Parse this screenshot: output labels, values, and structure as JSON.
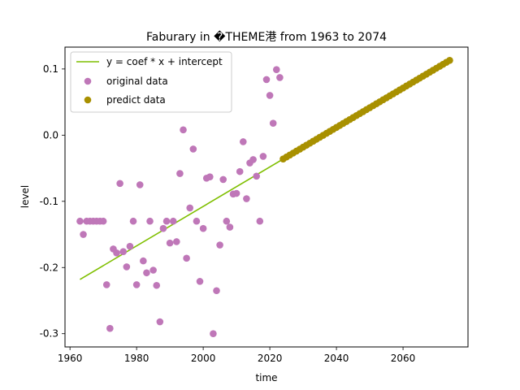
{
  "chart_data": {
    "type": "scatter",
    "title": "Faburary in �THEME港 from 1963 to 2074",
    "xlabel": "time",
    "ylabel": "level",
    "xlim": [
      1958.5,
      2079.5
    ],
    "ylim": [
      -0.32,
      0.133
    ],
    "xticks": [
      1960,
      1980,
      2000,
      2020,
      2040,
      2060
    ],
    "xtick_labels": [
      "1960",
      "1980",
      "2000",
      "2020",
      "2040",
      "2060"
    ],
    "yticks": [
      -0.3,
      -0.2,
      -0.1,
      0.0,
      0.1
    ],
    "ytick_labels": [
      "-0.3",
      "-0.2",
      "-0.1",
      "0.0",
      "0.1"
    ],
    "grid": false,
    "legend_position": "upper-left",
    "series": [
      {
        "name": "y = coef * x + intercept",
        "kind": "line",
        "color": "#7fbf00",
        "x": [
          1963,
          2074
        ],
        "y": [
          -0.218,
          0.113
        ]
      },
      {
        "name": "original data",
        "kind": "scatter",
        "color": "#bf77b8",
        "x": [
          1963,
          1964,
          1965,
          1966,
          1967,
          1968,
          1969,
          1970,
          1971,
          1972,
          1973,
          1974,
          1975,
          1976,
          1977,
          1978,
          1979,
          1980,
          1981,
          1982,
          1983,
          1984,
          1985,
          1986,
          1987,
          1988,
          1989,
          1990,
          1991,
          1992,
          1993,
          1994,
          1995,
          1996,
          1997,
          1998,
          1999,
          2000,
          2001,
          2002,
          2003,
          2004,
          2005,
          2006,
          2007,
          2008,
          2009,
          2010,
          2011,
          2012,
          2013,
          2014,
          2015,
          2016,
          2017,
          2018,
          2019,
          2020,
          2021,
          2022,
          2023
        ],
        "y": [
          -0.13,
          -0.15,
          -0.13,
          -0.13,
          -0.13,
          -0.13,
          -0.13,
          -0.13,
          -0.226,
          -0.292,
          -0.172,
          -0.178,
          -0.073,
          -0.176,
          -0.199,
          -0.168,
          -0.13,
          -0.226,
          -0.075,
          -0.19,
          -0.208,
          -0.13,
          -0.204,
          -0.227,
          -0.282,
          -0.141,
          -0.13,
          -0.163,
          -0.13,
          -0.161,
          -0.058,
          0.008,
          -0.186,
          -0.11,
          -0.021,
          -0.13,
          -0.221,
          -0.141,
          -0.065,
          -0.063,
          -0.3,
          -0.235,
          -0.166,
          -0.067,
          -0.13,
          -0.139,
          -0.089,
          -0.088,
          -0.055,
          -0.01,
          -0.096,
          -0.042,
          -0.037,
          -0.062,
          -0.13,
          -0.032,
          0.084,
          0.06,
          0.018,
          0.099,
          0.087
        ]
      },
      {
        "name": "predict data",
        "kind": "scatter",
        "color": "#a89000",
        "x_start": 2024,
        "x_end": 2074,
        "x_step": 1,
        "y_start": -0.036,
        "y_end": 0.113
      }
    ]
  }
}
